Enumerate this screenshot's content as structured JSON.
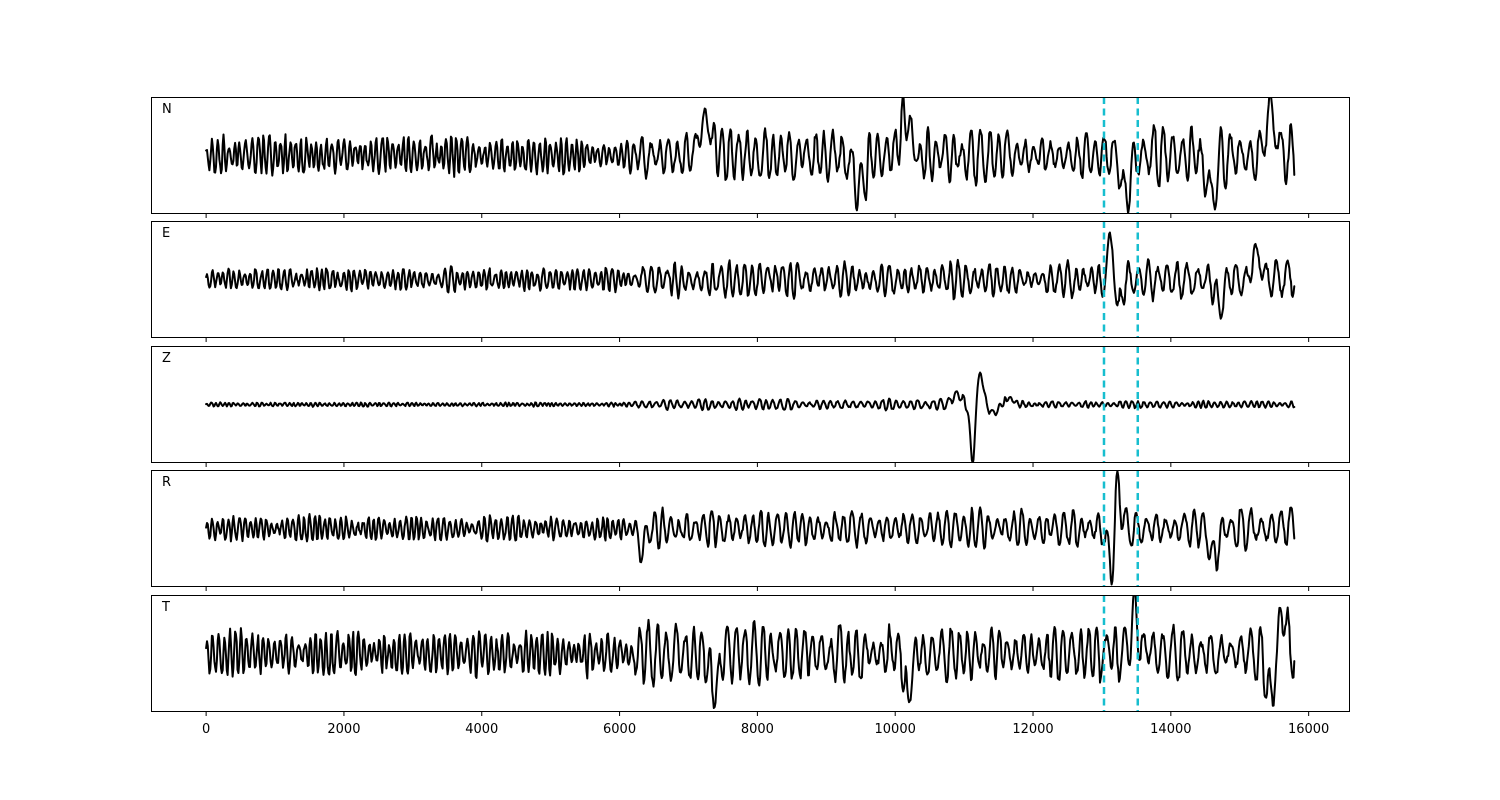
{
  "chart_data": {
    "type": "line",
    "xlim": [
      -800,
      16600
    ],
    "x_ticks": [
      0,
      2000,
      4000,
      6000,
      8000,
      10000,
      12000,
      14000,
      16000
    ],
    "x_tick_labels": [
      "0",
      "2000",
      "4000",
      "6000",
      "8000",
      "10000",
      "12000",
      "14000",
      "16000"
    ],
    "n_samples": 15800,
    "markers": [
      13030,
      13520
    ],
    "marker_color": "#17becf",
    "line_color": "#000000",
    "grid": false,
    "panels": [
      {
        "label": "N",
        "ylim": [
          -1.15,
          1.15
        ],
        "base_amplitude": 0.34,
        "segments": [
          {
            "from": 0,
            "to": 6200,
            "amplitude": 0.34,
            "period": 85
          },
          {
            "from": 6200,
            "to": 13000,
            "amplitude": 0.48,
            "period": 135
          },
          {
            "from": 13000,
            "to": 15800,
            "amplitude": 0.55,
            "period": 150
          }
        ],
        "events": [
          {
            "x": 7250,
            "amplitude": 0.7,
            "width": 120
          },
          {
            "x": 9480,
            "amplitude": -0.65,
            "width": 110
          },
          {
            "x": 10150,
            "amplitude": 0.8,
            "width": 100
          },
          {
            "x": 13350,
            "amplitude": -0.85,
            "width": 90
          },
          {
            "x": 14580,
            "amplitude": -0.75,
            "width": 100
          },
          {
            "x": 15450,
            "amplitude": 0.95,
            "width": 90
          }
        ]
      },
      {
        "label": "E",
        "ylim": [
          -1.15,
          1.15
        ],
        "base_amplitude": 0.2,
        "segments": [
          {
            "from": 0,
            "to": 6200,
            "amplitude": 0.22,
            "period": 85
          },
          {
            "from": 6200,
            "to": 13000,
            "amplitude": 0.32,
            "period": 120
          },
          {
            "from": 13000,
            "to": 15800,
            "amplitude": 0.38,
            "period": 150
          }
        ],
        "events": [
          {
            "x": 13150,
            "amplitude": 0.9,
            "width": 70
          },
          {
            "x": 13220,
            "amplitude": -0.9,
            "width": 60
          },
          {
            "x": 14700,
            "amplitude": -0.6,
            "width": 70
          },
          {
            "x": 15250,
            "amplitude": 0.55,
            "width": 80
          }
        ]
      },
      {
        "label": "Z",
        "ylim": [
          -1.15,
          1.15
        ],
        "base_amplitude": 0.04,
        "segments": [
          {
            "from": 0,
            "to": 6200,
            "amplitude": 0.04,
            "period": 70
          },
          {
            "from": 6200,
            "to": 11500,
            "amplitude": 0.1,
            "period": 110
          },
          {
            "from": 11500,
            "to": 15800,
            "amplitude": 0.06,
            "period": 90
          }
        ],
        "events": [
          {
            "x": 10900,
            "amplitude": 0.2,
            "width": 90
          },
          {
            "x": 11120,
            "amplitude": -1.15,
            "width": 45
          },
          {
            "x": 11240,
            "amplitude": 0.62,
            "width": 55
          },
          {
            "x": 11430,
            "amplitude": -0.18,
            "width": 80
          },
          {
            "x": 11650,
            "amplitude": 0.12,
            "width": 90
          }
        ]
      },
      {
        "label": "R",
        "ylim": [
          -1.15,
          1.15
        ],
        "base_amplitude": 0.22,
        "segments": [
          {
            "from": 0,
            "to": 6200,
            "amplitude": 0.22,
            "period": 85
          },
          {
            "from": 6200,
            "to": 13000,
            "amplitude": 0.33,
            "period": 125
          },
          {
            "from": 13000,
            "to": 15800,
            "amplitude": 0.4,
            "period": 150
          }
        ],
        "events": [
          {
            "x": 13140,
            "amplitude": -0.9,
            "width": 60
          },
          {
            "x": 13230,
            "amplitude": 0.95,
            "width": 60
          },
          {
            "x": 14620,
            "amplitude": -0.6,
            "width": 80
          },
          {
            "x": 6320,
            "amplitude": -0.45,
            "width": 60
          }
        ]
      },
      {
        "label": "T",
        "ylim": [
          -1.15,
          1.15
        ],
        "base_amplitude": 0.4,
        "segments": [
          {
            "from": 0,
            "to": 6200,
            "amplitude": 0.4,
            "period": 85
          },
          {
            "from": 6200,
            "to": 13000,
            "amplitude": 0.5,
            "period": 130
          },
          {
            "from": 13000,
            "to": 15800,
            "amplitude": 0.55,
            "period": 145
          }
        ],
        "events": [
          {
            "x": 10180,
            "amplitude": -0.95,
            "width": 60
          },
          {
            "x": 7380,
            "amplitude": -0.7,
            "width": 90
          },
          {
            "x": 15450,
            "amplitude": -1.0,
            "width": 70
          },
          {
            "x": 15630,
            "amplitude": 0.95,
            "width": 70
          },
          {
            "x": 13480,
            "amplitude": 0.75,
            "width": 80
          }
        ]
      }
    ]
  }
}
